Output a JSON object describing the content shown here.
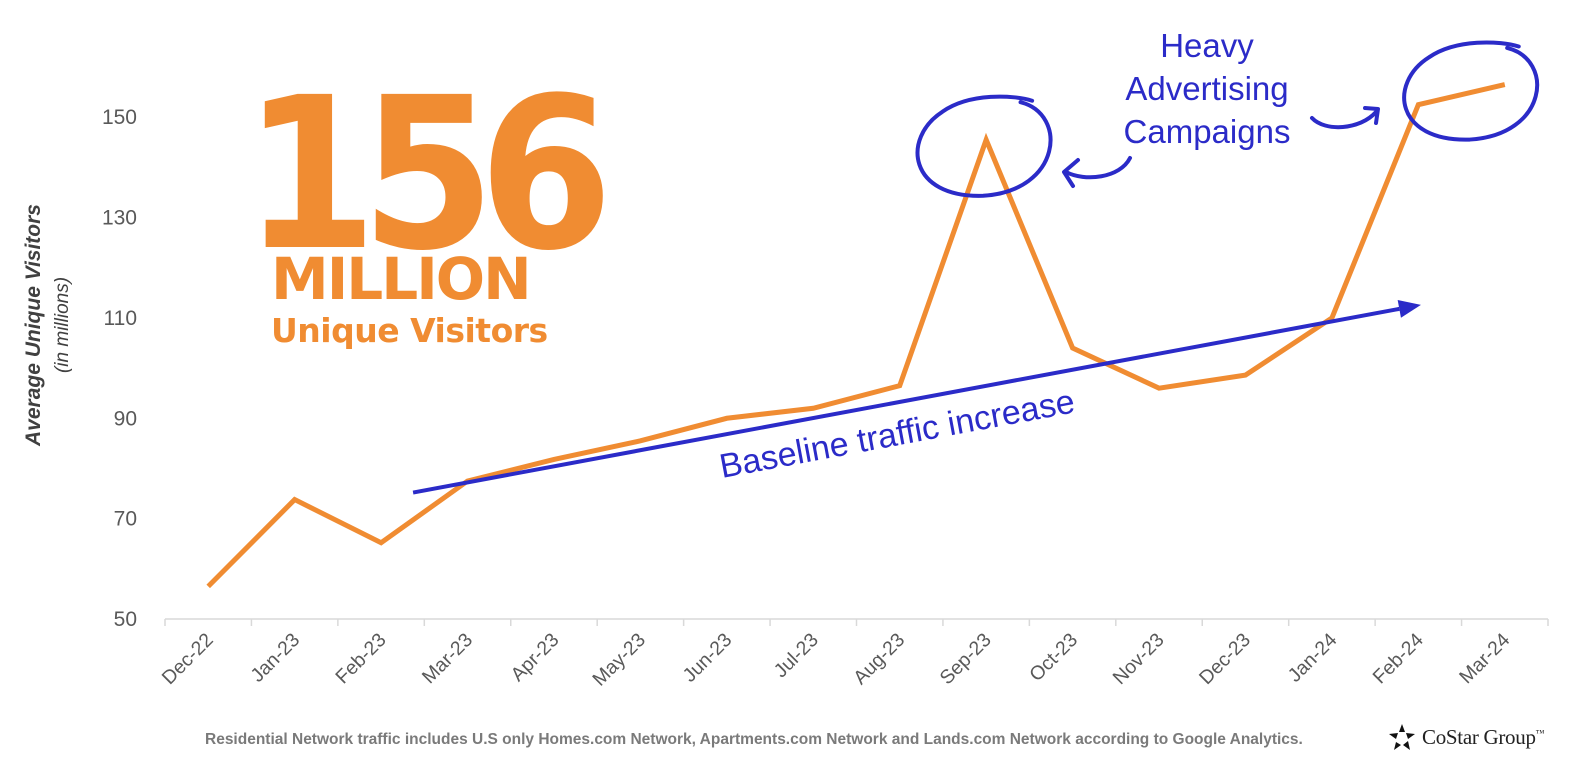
{
  "colors": {
    "line": "#f08c32",
    "annotation": "#2b2bc8",
    "axis": "#d9d9d9",
    "tick_text": "#595959"
  },
  "headline": {
    "number": "156",
    "unit": "MILLION",
    "subtitle": "Unique Visitors"
  },
  "chart_data": {
    "type": "line",
    "title": "",
    "ylabel": "Average Unique Visitors",
    "ylabel_sub": "(in millions)",
    "xlabel": "",
    "ylim": [
      50,
      160
    ],
    "yticks": [
      50,
      70,
      90,
      110,
      130,
      150
    ],
    "grid": false,
    "categories": [
      "Dec-22",
      "Jan-23",
      "Feb-23",
      "Mar-23",
      "Apr-23",
      "May-23",
      "Jun-23",
      "Jul-23",
      "Aug-23",
      "Sep-23",
      "Oct-23",
      "Nov-23",
      "Dec-23",
      "Jan-24",
      "Feb-24",
      "Mar-24"
    ],
    "series": [
      {
        "name": "Average Unique Visitors",
        "values": [
          56.5,
          73.8,
          65.2,
          77.5,
          81.8,
          85.5,
          90.0,
          92.0,
          96.5,
          145.5,
          104.0,
          96.0,
          98.6,
          110.0,
          152.5,
          156.5
        ]
      }
    ],
    "annotations": {
      "trend_label": "Baseline traffic increase",
      "trend_start": {
        "x": "Feb-23",
        "offset": 0.37,
        "y": 75.2
      },
      "trend_end": {
        "x": "Feb-24",
        "offset": 0.03,
        "y": 112.6
      },
      "campaign_label_lines": [
        "Heavy",
        "Advertising",
        "Campaigns"
      ],
      "highlighted_points": [
        "Sep-23",
        "Mar-24"
      ]
    }
  },
  "footnote": "Residential Network traffic includes U.S only Homes.com Network, Apartments.com Network and Lands.com Network according to Google Analytics.",
  "logo": {
    "text": "CoStar Group",
    "tm": "™",
    "icon": "costar-star-icon"
  }
}
